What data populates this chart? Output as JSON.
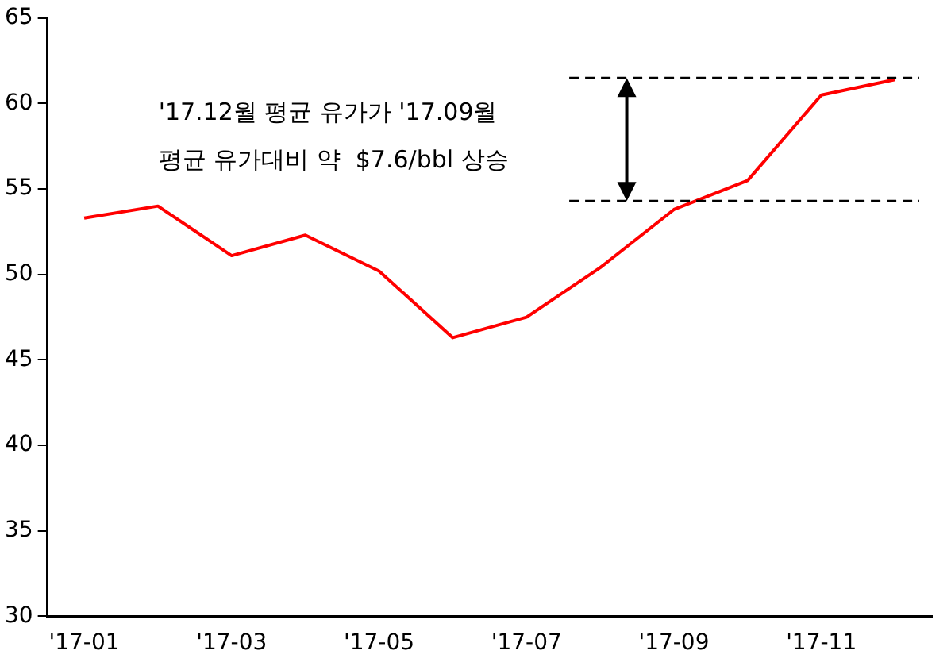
{
  "chart_data": {
    "type": "line",
    "categories": [
      "'17-01",
      null,
      "'17-03",
      null,
      "'17-05",
      null,
      "'17-07",
      null,
      "'17-09",
      null,
      "'17-11",
      null
    ],
    "series": [
      {
        "color": "#ff0000",
        "values": [
          53.3,
          54.0,
          51.1,
          52.3,
          50.2,
          46.3,
          47.5,
          50.4,
          53.8,
          55.5,
          60.5,
          61.4
        ]
      }
    ],
    "ylim": [
      30,
      65
    ],
    "yticks": [
      30,
      35,
      40,
      45,
      50,
      55,
      60,
      65
    ],
    "grid": false,
    "legend": false,
    "marker": "none",
    "line_style": "solid",
    "ref_lines": [
      {
        "axis": "y",
        "value": 61.5,
        "color": "#000000",
        "line_style": "dashed"
      },
      {
        "axis": "y",
        "value": 54.3,
        "color": "#000000",
        "line_style": "dashed"
      }
    ],
    "annotations": [
      "'17.12월 평균 유가가 '17.09월\n평균 유가대비 약  $7.6/bbl 상승"
    ]
  }
}
